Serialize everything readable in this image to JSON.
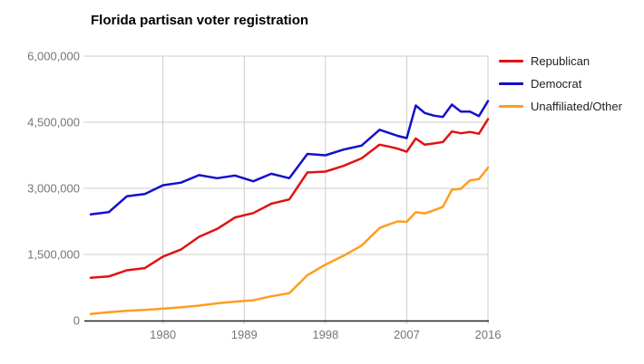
{
  "chart": {
    "title": "Florida partisan voter registration",
    "background": "#ffffff",
    "gridline_color": "#cccccc",
    "axis_line_color": "#222222",
    "tick_label_color": "#757575"
  },
  "chart_data": {
    "type": "line",
    "title": "Florida partisan voter registration",
    "xlabel": "",
    "ylabel": "",
    "xlim": [
      1972,
      2016
    ],
    "ylim": [
      0,
      6000000
    ],
    "grid": true,
    "legend_position": "top-right-outside",
    "x_ticks": [
      1980,
      1989,
      1998,
      2007,
      2016
    ],
    "x_tick_labels": [
      "1980",
      "1989",
      "1998",
      "2007",
      "2016"
    ],
    "y_ticks": [
      0,
      1500000,
      3000000,
      4500000,
      6000000
    ],
    "y_tick_labels": [
      "0",
      "1,500,000",
      "3,000,000",
      "4,500,000",
      "6,000,000"
    ],
    "x": [
      1972,
      1974,
      1976,
      1978,
      1980,
      1982,
      1984,
      1986,
      1988,
      1990,
      1992,
      1994,
      1996,
      1998,
      2000,
      2002,
      2004,
      2005,
      2006,
      2007,
      2008,
      2009,
      2010,
      2011,
      2012,
      2013,
      2014,
      2015,
      2016
    ],
    "series": [
      {
        "name": "Republican",
        "color": "#e01212",
        "values": [
          970000,
          1000000,
          1140000,
          1190000,
          1450000,
          1610000,
          1900000,
          2080000,
          2340000,
          2440000,
          2650000,
          2750000,
          3360000,
          3380000,
          3510000,
          3680000,
          3990000,
          3950000,
          3900000,
          3830000,
          4130000,
          3990000,
          4020000,
          4050000,
          4290000,
          4250000,
          4280000,
          4240000,
          4570000
        ]
      },
      {
        "name": "Democrat",
        "color": "#1111cc",
        "values": [
          2410000,
          2460000,
          2820000,
          2870000,
          3070000,
          3130000,
          3300000,
          3230000,
          3290000,
          3160000,
          3330000,
          3230000,
          3780000,
          3750000,
          3880000,
          3970000,
          4330000,
          4260000,
          4190000,
          4140000,
          4880000,
          4710000,
          4650000,
          4620000,
          4900000,
          4740000,
          4740000,
          4640000,
          4980000
        ]
      },
      {
        "name": "Unaffiliated/Other",
        "color": "#ff9d1e",
        "values": [
          150000,
          190000,
          220000,
          240000,
          270000,
          300000,
          340000,
          390000,
          430000,
          460000,
          550000,
          620000,
          1030000,
          1270000,
          1470000,
          1700000,
          2100000,
          2180000,
          2250000,
          2240000,
          2460000,
          2430000,
          2500000,
          2580000,
          2970000,
          2990000,
          3180000,
          3210000,
          3470000
        ]
      }
    ]
  }
}
